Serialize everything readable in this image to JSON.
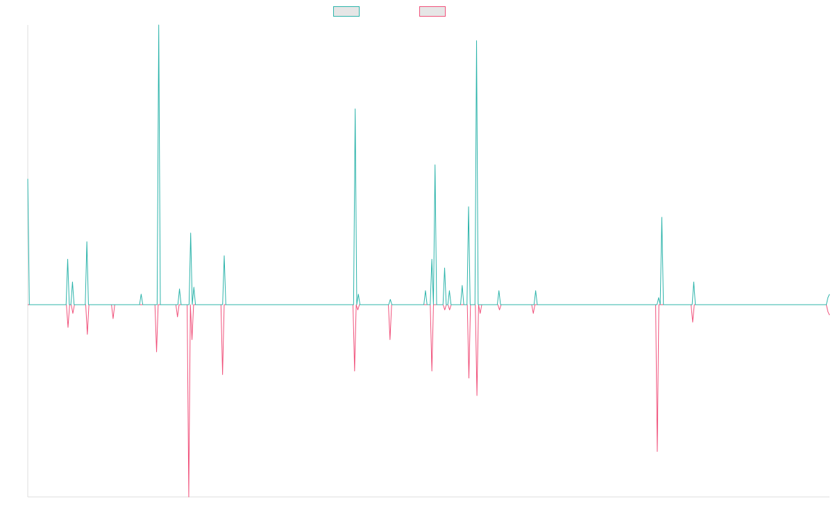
{
  "colors": {
    "series_a": "#2bb3aa",
    "series_b": "#f0507a",
    "axis": "#dddddd"
  },
  "chart_data": {
    "type": "line",
    "grid": false,
    "legend_placement": "top-center",
    "ylim": [
      -1.1,
      1.6
    ],
    "series": [
      {
        "color": "#2bb3aa",
        "values": [
          0.72,
          0,
          0,
          0,
          0,
          0,
          0,
          0,
          0,
          0,
          0,
          0,
          0,
          0,
          0,
          0,
          0,
          0,
          0,
          0,
          0,
          0,
          0,
          0,
          0,
          0.26,
          0,
          0,
          0.13,
          0,
          0,
          0,
          0,
          0,
          0,
          0,
          0,
          0.36,
          0,
          0,
          0,
          0,
          0,
          0,
          0,
          0,
          0,
          0,
          0,
          0,
          0,
          0,
          0,
          0,
          0,
          0,
          0,
          0,
          0,
          0,
          0,
          0,
          0,
          0,
          0,
          0,
          0,
          0,
          0,
          0,
          0,
          0.06,
          0,
          0,
          0,
          0,
          0,
          0,
          0,
          0,
          0,
          0,
          1.6,
          0,
          0,
          0,
          0,
          0,
          0,
          0,
          0,
          0,
          0,
          0,
          0,
          0.09,
          0,
          0,
          0,
          0,
          0,
          0,
          0.41,
          0,
          0.1,
          0,
          0,
          0,
          0,
          0,
          0,
          0,
          0,
          0,
          0,
          0,
          0,
          0,
          0,
          0,
          0,
          0,
          0,
          0.28,
          0,
          0,
          0,
          0,
          0,
          0,
          0,
          0,
          0,
          0,
          0,
          0,
          0,
          0,
          0,
          0,
          0,
          0,
          0,
          0,
          0,
          0,
          0,
          0,
          0,
          0,
          0,
          0,
          0,
          0,
          0,
          0,
          0,
          0,
          0,
          0,
          0,
          0,
          0,
          0,
          0,
          0,
          0,
          0,
          0,
          0,
          0,
          0,
          0,
          0,
          0,
          0,
          0,
          0,
          0,
          0,
          0,
          0,
          0,
          0,
          0,
          0,
          0,
          0,
          0,
          0,
          0,
          0,
          0,
          0,
          0,
          0,
          0,
          0,
          0,
          0,
          0,
          0,
          0,
          0,
          0,
          1.12,
          0,
          0.06,
          0,
          0,
          0,
          0,
          0,
          0,
          0,
          0,
          0,
          0,
          0,
          0,
          0,
          0,
          0,
          0,
          0,
          0,
          0,
          0.03,
          0,
          0,
          0,
          0,
          0,
          0,
          0,
          0,
          0,
          0,
          0,
          0,
          0,
          0,
          0,
          0,
          0,
          0,
          0,
          0,
          0,
          0.08,
          0,
          0,
          0,
          0.26,
          0,
          0.8,
          0,
          0,
          0,
          0,
          0,
          0.21,
          0,
          0,
          0.08,
          0,
          0,
          0,
          0,
          0,
          0,
          0,
          0.11,
          0,
          0,
          0,
          0.56,
          0,
          0,
          0,
          0,
          1.51,
          0,
          0,
          0,
          0,
          0,
          0,
          0,
          0,
          0,
          0,
          0,
          0,
          0,
          0.08,
          0,
          0,
          0,
          0,
          0,
          0,
          0,
          0,
          0,
          0,
          0,
          0,
          0,
          0,
          0,
          0,
          0,
          0,
          0,
          0,
          0,
          0,
          0.08,
          0,
          0,
          0,
          0,
          0,
          0,
          0,
          0,
          0,
          0,
          0,
          0,
          0,
          0,
          0,
          0,
          0,
          0,
          0,
          0,
          0,
          0,
          0,
          0,
          0,
          0,
          0,
          0,
          0,
          0,
          0,
          0,
          0,
          0,
          0,
          0,
          0,
          0,
          0,
          0,
          0,
          0,
          0,
          0,
          0,
          0,
          0,
          0,
          0,
          0,
          0,
          0,
          0,
          0,
          0,
          0,
          0,
          0,
          0,
          0,
          0,
          0,
          0,
          0,
          0,
          0,
          0,
          0,
          0,
          0,
          0,
          0,
          0,
          0,
          0,
          0,
          0.04,
          0,
          0.5,
          0,
          0,
          0,
          0,
          0,
          0,
          0,
          0,
          0,
          0,
          0,
          0,
          0,
          0,
          0,
          0,
          0,
          0,
          0,
          0.13,
          0,
          0,
          0,
          0,
          0,
          0,
          0,
          0,
          0,
          0,
          0,
          0,
          0,
          0,
          0,
          0,
          0,
          0,
          0,
          0,
          0,
          0,
          0,
          0,
          0,
          0,
          0,
          0,
          0,
          0,
          0,
          0,
          0,
          0,
          0,
          0,
          0,
          0,
          0,
          0,
          0,
          0,
          0,
          0,
          0,
          0,
          0,
          0,
          0,
          0,
          0,
          0,
          0,
          0,
          0,
          0,
          0,
          0,
          0,
          0,
          0,
          0,
          0,
          0,
          0,
          0,
          0,
          0,
          0,
          0,
          0,
          0,
          0,
          0,
          0,
          0,
          0,
          0,
          0,
          0,
          0,
          0,
          0,
          0.04,
          0.06
        ]
      },
      {
        "color": "#f0507a",
        "values": [
          0,
          0,
          0,
          0,
          0,
          0,
          0,
          0,
          0,
          0,
          0,
          0,
          0,
          0,
          0,
          0,
          0,
          0,
          0,
          0,
          0,
          0,
          0,
          0,
          0,
          -0.13,
          0,
          0,
          -0.05,
          0,
          0,
          0,
          0,
          0,
          0,
          0,
          0,
          -0.17,
          0,
          0,
          0,
          0,
          0,
          0,
          0,
          0,
          0,
          0,
          0,
          0,
          0,
          0,
          0,
          -0.08,
          0,
          0,
          0,
          0,
          0,
          0,
          0,
          0,
          0,
          0,
          0,
          0,
          0,
          0,
          0,
          0,
          0,
          0,
          0,
          0,
          0,
          0,
          0,
          0,
          0,
          0,
          -0.27,
          0,
          0,
          0,
          0,
          0,
          0,
          0,
          0,
          0,
          0,
          0,
          0,
          -0.07,
          0,
          0,
          0,
          0,
          0,
          0,
          -1.1,
          0,
          -0.2,
          0,
          0,
          0,
          0,
          0,
          0,
          0,
          0,
          0,
          0,
          0,
          0,
          0,
          0,
          0,
          0,
          0,
          0,
          -0.4,
          0,
          0,
          0,
          0,
          0,
          0,
          0,
          0,
          0,
          0,
          0,
          0,
          0,
          0,
          0,
          0,
          0,
          0,
          0,
          0,
          0,
          0,
          0,
          0,
          0,
          0,
          0,
          0,
          0,
          0,
          0,
          0,
          0,
          0,
          0,
          0,
          0,
          0,
          0,
          0,
          0,
          0,
          0,
          0,
          0,
          0,
          0,
          0,
          0,
          0,
          0,
          0,
          0,
          0,
          0,
          0,
          0,
          0,
          0,
          0,
          0,
          0,
          0,
          0,
          0,
          0,
          0,
          0,
          0,
          0,
          0,
          0,
          0,
          0,
          0,
          0,
          0,
          0,
          0,
          0,
          0,
          -0.38,
          0,
          -0.03,
          0,
          0,
          0,
          0,
          0,
          0,
          0,
          0,
          0,
          0,
          0,
          0,
          0,
          0,
          0,
          0,
          0,
          0,
          0,
          -0.2,
          0,
          0,
          0,
          0,
          0,
          0,
          0,
          0,
          0,
          0,
          0,
          0,
          0,
          0,
          0,
          0,
          0,
          0,
          0,
          0,
          0,
          0,
          0,
          0,
          0,
          -0.38,
          0,
          0,
          0,
          0,
          0,
          0,
          0,
          -0.03,
          0,
          0,
          -0.03,
          0,
          0,
          0,
          0,
          0,
          0,
          0,
          0,
          0,
          0,
          0,
          -0.42,
          0,
          0,
          0,
          0,
          -0.52,
          0,
          -0.05,
          0,
          0,
          0,
          0,
          0,
          0,
          0,
          0,
          0,
          0,
          0,
          -0.03,
          0,
          0,
          0,
          0,
          0,
          0,
          0,
          0,
          0,
          0,
          0,
          0,
          0,
          0,
          0,
          0,
          0,
          0,
          0,
          0,
          -0.05,
          0,
          0,
          0,
          0,
          0,
          0,
          0,
          0,
          0,
          0,
          0,
          0,
          0,
          0,
          0,
          0,
          0,
          0,
          0,
          0,
          0,
          0,
          0,
          0,
          0,
          0,
          0,
          0,
          0,
          0,
          0,
          0,
          0,
          0,
          0,
          0,
          0,
          0,
          0,
          0,
          0,
          0,
          0,
          0,
          0,
          0,
          0,
          0,
          0,
          0,
          0,
          0,
          0,
          0,
          0,
          0,
          0,
          0,
          0,
          0,
          0,
          0,
          0,
          0,
          0,
          0,
          0,
          0,
          0,
          0,
          0,
          0,
          0,
          0,
          0,
          0,
          -0.84,
          0,
          0,
          0,
          0,
          0,
          0,
          0,
          0,
          0,
          0,
          0,
          0,
          0,
          0,
          0,
          0,
          0,
          0,
          0,
          0,
          0,
          -0.1,
          0,
          0,
          0,
          0,
          0,
          0,
          0,
          0,
          0,
          0,
          0,
          0,
          0,
          0,
          0,
          0,
          0,
          0,
          0,
          0,
          0,
          0,
          0,
          0,
          0,
          0,
          0,
          0,
          0,
          0,
          0,
          0,
          0,
          0,
          0,
          0,
          0,
          0,
          0,
          0,
          0,
          0,
          0,
          0,
          0,
          0,
          0,
          0,
          0,
          0,
          0,
          0,
          0,
          0,
          0,
          0,
          0,
          0,
          0,
          0,
          0,
          0,
          0,
          0,
          0,
          0,
          0,
          0,
          0,
          0,
          0,
          0,
          0,
          0,
          0,
          0,
          0,
          0,
          0,
          0,
          0,
          0,
          0,
          -0.04,
          -0.06
        ]
      }
    ]
  }
}
